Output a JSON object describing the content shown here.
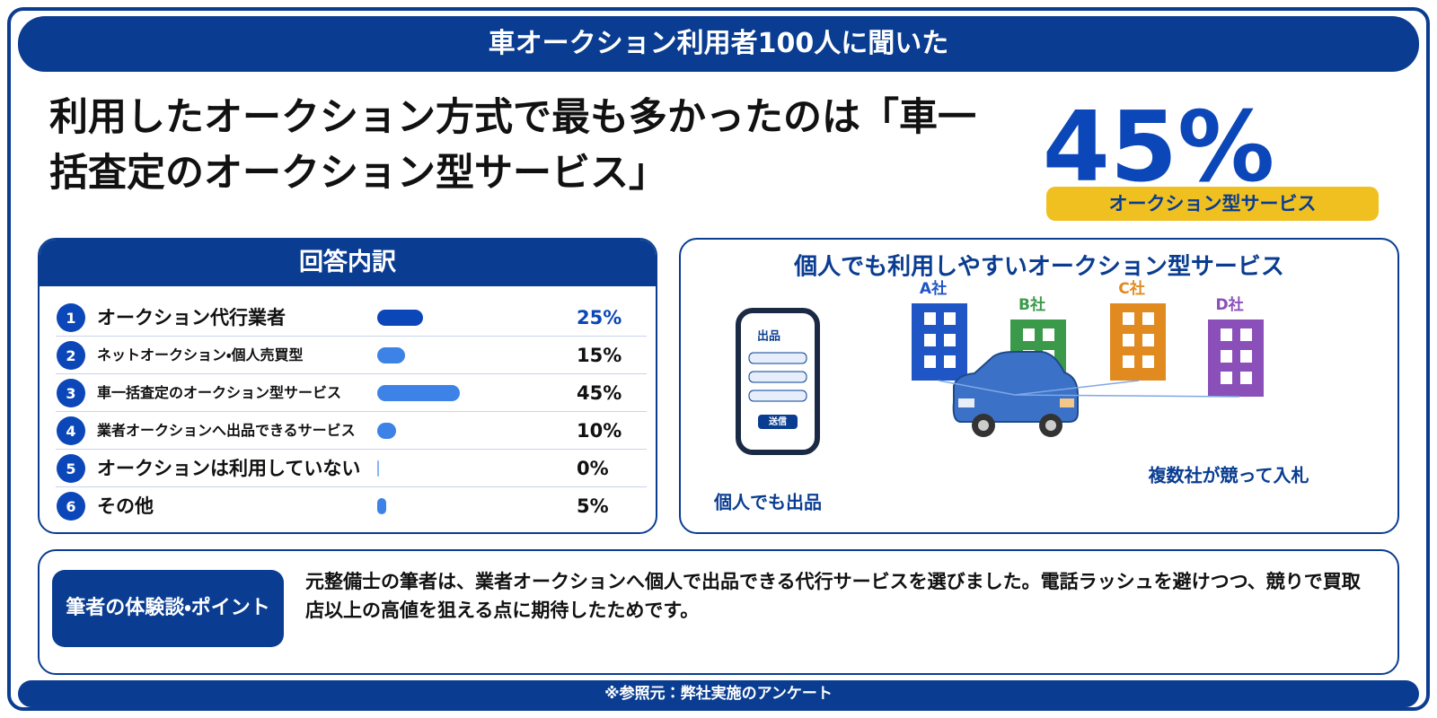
{
  "header": "車オークション利用者100人に聞いた",
  "headline": "利用したオークション方式で最も多かったのは「車一括査定のオークション型サービス」",
  "highlight": {
    "value": "45%",
    "label": "オークション型サービス"
  },
  "breakdown": {
    "title": "回答内訳",
    "rows": [
      {
        "rank": "1",
        "label": "オークション代行業者",
        "value": 25,
        "value_label": "25%"
      },
      {
        "rank": "2",
        "label": "ネットオークション・個人売買型",
        "value": 15,
        "value_label": "15%"
      },
      {
        "rank": "3",
        "label": "車一括査定のオークション型サービス",
        "value": 45,
        "value_label": "45%"
      },
      {
        "rank": "4",
        "label": "業者オークションへ出品できるサービス",
        "value": 10,
        "value_label": "10%"
      },
      {
        "rank": "5",
        "label": "オークションは利用していない",
        "value": 0,
        "value_label": "0%"
      },
      {
        "rank": "6",
        "label": "その他",
        "value": 5,
        "value_label": "5%"
      }
    ]
  },
  "illustration": {
    "title": "個人でも利用しやすいオークション型サービス",
    "phone_title": "出品",
    "phone_button": "送信",
    "companies": [
      "A社",
      "B社",
      "C社",
      "D社"
    ],
    "caption_left": "個人でも出品",
    "caption_right": "複数社が競って入札"
  },
  "experience": {
    "label": "筆者の体験談・ポイント",
    "text": "元整備士の筆者は、業者オークションへ個人で出品できる代行サービスを選びました。電話ラッシュを避けつつ、競りで買取店以上の高値を狙える点に期待したためです。"
  },
  "footer": "※参照元：弊社実施のアンケート"
}
